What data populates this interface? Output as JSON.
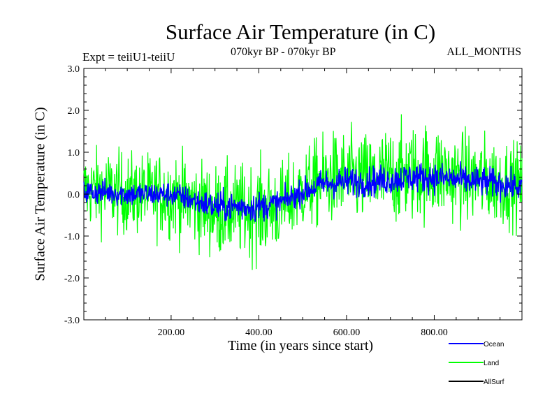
{
  "chart_data": {
    "type": "line",
    "title": "Surface Air Temperature (in C)",
    "subtitle": "070kyr BP - 070kyr BP",
    "experiment": "Expt = teiiU1-teiiU",
    "months": "ALL_MONTHS",
    "xlabel": "Time (in years since start)",
    "ylabel": "Surface Air Temperature (in C)",
    "xlim": [
      1,
      1000
    ],
    "ylim": [
      -3.0,
      3.0
    ],
    "x_ticks": [
      "200.00",
      "400.00",
      "600.00",
      "800.00"
    ],
    "y_ticks": [
      "3.0",
      "2.0",
      "1.0",
      "0.0",
      "-1.0",
      "-2.0",
      "-3.0"
    ],
    "legend_position": "bottom-right, below plot",
    "series": [
      {
        "name": "Land",
        "color": "#00ff00",
        "x": [
          0,
          50,
          100,
          150,
          200,
          250,
          300,
          350,
          400,
          450,
          500,
          550,
          600,
          650,
          700,
          750,
          800,
          850,
          900,
          950,
          1000
        ],
        "mean": [
          0.1,
          0.1,
          0.0,
          0.0,
          0.0,
          -0.2,
          -0.4,
          -0.4,
          -0.4,
          -0.3,
          0.1,
          0.35,
          0.4,
          0.35,
          0.45,
          0.5,
          0.55,
          0.4,
          0.35,
          0.3,
          0.2
        ],
        "spread": [
          0.75,
          0.8,
          0.8,
          0.8,
          0.85,
          0.85,
          0.9,
          0.9,
          0.95,
          0.85,
          0.8,
          0.9,
          0.9,
          0.9,
          0.95,
          0.95,
          0.95,
          0.9,
          0.9,
          0.85,
          0.8
        ]
      },
      {
        "name": "Ocean",
        "color": "#0000ff",
        "x": [
          0,
          50,
          100,
          150,
          200,
          250,
          300,
          350,
          400,
          450,
          500,
          550,
          600,
          650,
          700,
          750,
          800,
          850,
          900,
          950,
          1000
        ],
        "mean": [
          0.05,
          0.05,
          0.0,
          0.0,
          0.0,
          -0.15,
          -0.3,
          -0.3,
          -0.3,
          -0.2,
          0.05,
          0.25,
          0.3,
          0.3,
          0.35,
          0.4,
          0.4,
          0.35,
          0.3,
          0.25,
          0.15
        ],
        "spread": [
          0.25,
          0.25,
          0.25,
          0.25,
          0.25,
          0.25,
          0.3,
          0.3,
          0.3,
          0.25,
          0.25,
          0.3,
          0.3,
          0.3,
          0.3,
          0.3,
          0.3,
          0.3,
          0.3,
          0.3,
          0.25
        ]
      },
      {
        "name": "AllSurf",
        "color": "#000000",
        "x": [
          0,
          50,
          100,
          150,
          200,
          250,
          300,
          350,
          400,
          450,
          500,
          550,
          600,
          650,
          700,
          750,
          800,
          850,
          900,
          950,
          1000
        ],
        "mean": [
          0.05,
          0.05,
          0.0,
          0.0,
          0.0,
          -0.15,
          -0.3,
          -0.3,
          -0.3,
          -0.2,
          0.05,
          0.25,
          0.3,
          0.3,
          0.35,
          0.4,
          0.4,
          0.35,
          0.3,
          0.25,
          0.15
        ],
        "spread": [
          0.2,
          0.2,
          0.2,
          0.2,
          0.2,
          0.2,
          0.25,
          0.25,
          0.25,
          0.2,
          0.2,
          0.25,
          0.25,
          0.25,
          0.25,
          0.25,
          0.25,
          0.25,
          0.25,
          0.25,
          0.2
        ]
      }
    ]
  }
}
